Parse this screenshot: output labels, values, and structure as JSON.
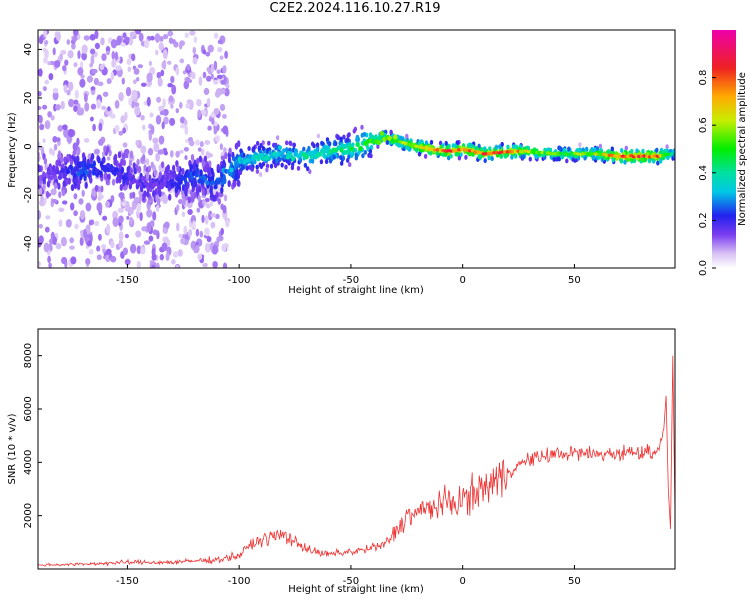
{
  "title": "C2E2.2024.116.10.27.R19",
  "chart_data": [
    {
      "type": "heatmap",
      "xlabel": "Height of straight line (km)",
      "ylabel": "Frequency (Hz)",
      "xlim": [
        -190,
        95
      ],
      "ylim": [
        -50,
        48
      ],
      "x_ticks": [
        -150,
        -100,
        -50,
        0,
        50
      ],
      "y_ticks": [
        -40,
        -20,
        0,
        20,
        40
      ],
      "colorbar": {
        "label": "Normalized spectral amplitude",
        "range": [
          0,
          1
        ],
        "ticks": [
          0.0,
          0.2,
          0.4,
          0.6,
          0.8
        ],
        "tick_labels": [
          "0.0",
          "0.2",
          "0.4",
          "0.6",
          "0.8"
        ]
      },
      "ridge": [
        {
          "x": -185,
          "f": -12,
          "amp": 0.15
        },
        {
          "x": -170,
          "f": -10,
          "amp": 0.25
        },
        {
          "x": -160,
          "f": -8,
          "amp": 0.2
        },
        {
          "x": -150,
          "f": -12,
          "amp": 0.2
        },
        {
          "x": -140,
          "f": -16,
          "amp": 0.15
        },
        {
          "x": -130,
          "f": -15,
          "amp": 0.2
        },
        {
          "x": -120,
          "f": -12,
          "amp": 0.25
        },
        {
          "x": -110,
          "f": -15,
          "amp": 0.25
        },
        {
          "x": -105,
          "f": -10,
          "amp": 0.3
        },
        {
          "x": -100,
          "f": -6,
          "amp": 0.35
        },
        {
          "x": -90,
          "f": -4,
          "amp": 0.35
        },
        {
          "x": -80,
          "f": -3,
          "amp": 0.35
        },
        {
          "x": -70,
          "f": -4,
          "amp": 0.4
        },
        {
          "x": -60,
          "f": -2,
          "amp": 0.4
        },
        {
          "x": -50,
          "f": -1,
          "amp": 0.45
        },
        {
          "x": -42,
          "f": 2,
          "amp": 0.5
        },
        {
          "x": -35,
          "f": 4,
          "amp": 0.55
        },
        {
          "x": -25,
          "f": 1,
          "amp": 0.65
        },
        {
          "x": -15,
          "f": -1,
          "amp": 0.75
        },
        {
          "x": -5,
          "f": -2,
          "amp": 0.85
        },
        {
          "x": 0,
          "f": -1,
          "amp": 0.8
        },
        {
          "x": 10,
          "f": -3,
          "amp": 0.8
        },
        {
          "x": 20,
          "f": -2,
          "amp": 0.85
        },
        {
          "x": 30,
          "f": -2,
          "amp": 0.6
        },
        {
          "x": 40,
          "f": -3,
          "amp": 0.55
        },
        {
          "x": 50,
          "f": -3,
          "amp": 0.55
        },
        {
          "x": 60,
          "f": -3,
          "amp": 0.6
        },
        {
          "x": 70,
          "f": -4,
          "amp": 0.85
        },
        {
          "x": 80,
          "f": -4,
          "amp": 0.85
        },
        {
          "x": 88,
          "f": -4,
          "amp": 0.8
        },
        {
          "x": 93,
          "f": -3,
          "amp": 0.4
        }
      ]
    },
    {
      "type": "line",
      "xlabel": "Height of straight line (km)",
      "ylabel": "SNR (10 * v/v)",
      "xlim": [
        -190,
        95
      ],
      "ylim": [
        0,
        9000
      ],
      "x_ticks": [
        -150,
        -100,
        -50,
        0,
        50
      ],
      "y_ticks": [
        2000,
        4000,
        6000,
        8000
      ],
      "series": [
        {
          "color": "#ee3333",
          "x": [
            -190,
            -170,
            -150,
            -130,
            -110,
            -100,
            -95,
            -90,
            -85,
            -80,
            -75,
            -70,
            -65,
            -60,
            -55,
            -50,
            -45,
            -40,
            -35,
            -30,
            -25,
            -20,
            -15,
            -10,
            -5,
            0,
            5,
            10,
            15,
            20,
            25,
            30,
            35,
            40,
            50,
            60,
            70,
            80,
            85,
            88,
            90,
            91,
            92,
            93,
            94,
            95
          ],
          "y": [
            150,
            180,
            250,
            250,
            350,
            500,
            900,
            1100,
            1200,
            1300,
            1000,
            800,
            600,
            550,
            600,
            650,
            700,
            800,
            900,
            1400,
            2000,
            2100,
            2300,
            2400,
            2500,
            2600,
            2800,
            3100,
            3300,
            3600,
            3900,
            4100,
            4200,
            4300,
            4350,
            4300,
            4350,
            4400,
            4400,
            4600,
            5000,
            6500,
            3000,
            1500,
            8000,
            2000
          ]
        }
      ]
    }
  ]
}
